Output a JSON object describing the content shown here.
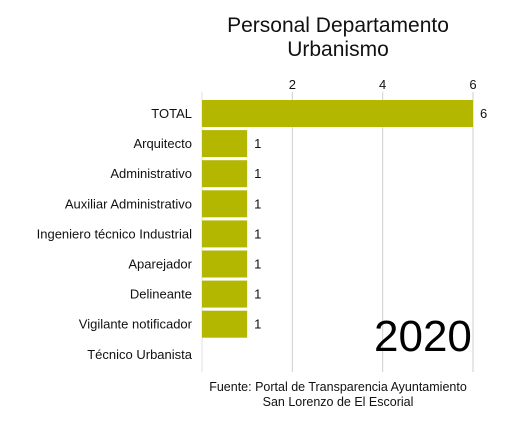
{
  "chart_data": {
    "type": "bar",
    "orientation": "horizontal",
    "title_lines": [
      "Personal Departamento",
      "Urbanismo"
    ],
    "categories": [
      "TOTAL",
      "Arquitecto",
      "Administrativo",
      "Auxiliar Administrativo",
      "Ingeniero técnico Industrial",
      "Aparejador",
      "Delineante",
      "Vigilante notificador",
      "Técnico Urbanista"
    ],
    "values": [
      6,
      1,
      1,
      1,
      1,
      1,
      1,
      1,
      0
    ],
    "data_labels": [
      "6",
      "1",
      "1",
      "1",
      "1",
      "1",
      "1",
      "1",
      ""
    ],
    "x_ticks": [
      2,
      4,
      6
    ],
    "xlim": [
      0,
      6
    ],
    "axis_position": "top",
    "grid": true,
    "year_label": "2020",
    "source_lines": [
      "Fuente: Portal de Transparencia Ayuntamiento",
      "San Lorenzo de El Escorial"
    ],
    "colors": {
      "bar": "#b3b700",
      "grid": "#cfcfcf",
      "text": "#111111"
    }
  }
}
